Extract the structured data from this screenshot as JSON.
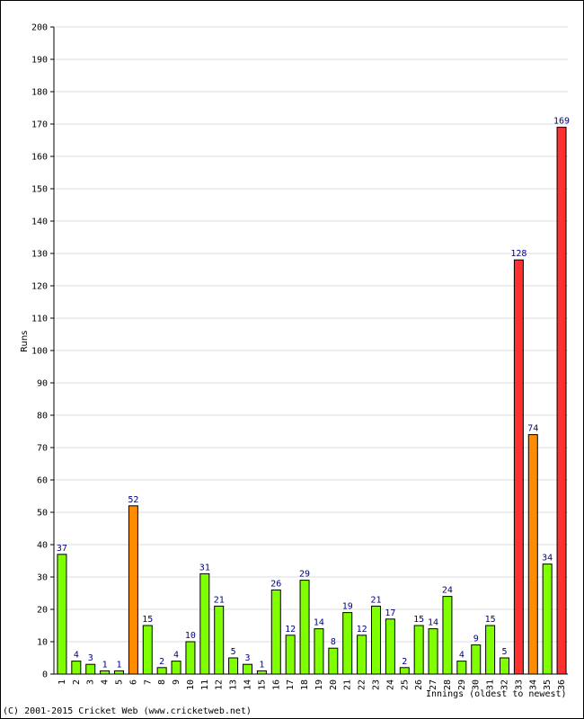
{
  "chart_data": {
    "type": "bar",
    "ylabel": "Runs",
    "xlabel": "Innings (oldest to newest)",
    "ylim": [
      0,
      200
    ],
    "ytick_step": 10,
    "grid": true,
    "categories": [
      "1",
      "2",
      "3",
      "4",
      "5",
      "6",
      "7",
      "8",
      "9",
      "10",
      "11",
      "12",
      "13",
      "14",
      "15",
      "16",
      "17",
      "18",
      "19",
      "20",
      "21",
      "22",
      "23",
      "24",
      "25",
      "26",
      "27",
      "28",
      "29",
      "30",
      "31",
      "32",
      "33",
      "34",
      "35",
      "36"
    ],
    "values": [
      37,
      4,
      3,
      1,
      1,
      52,
      15,
      2,
      4,
      10,
      31,
      21,
      5,
      3,
      1,
      26,
      12,
      29,
      14,
      8,
      19,
      12,
      21,
      17,
      2,
      15,
      14,
      24,
      4,
      9,
      15,
      5,
      128,
      74,
      34,
      169
    ],
    "colors": {
      "under_50": "#80ff00",
      "fifty": "#ff8c00",
      "hundred": "#ff3030",
      "label": "#000080",
      "gridline": "#dddddd"
    }
  },
  "footer": {
    "copyright": "(C) 2001-2015 Cricket Web (www.cricketweb.net)"
  }
}
